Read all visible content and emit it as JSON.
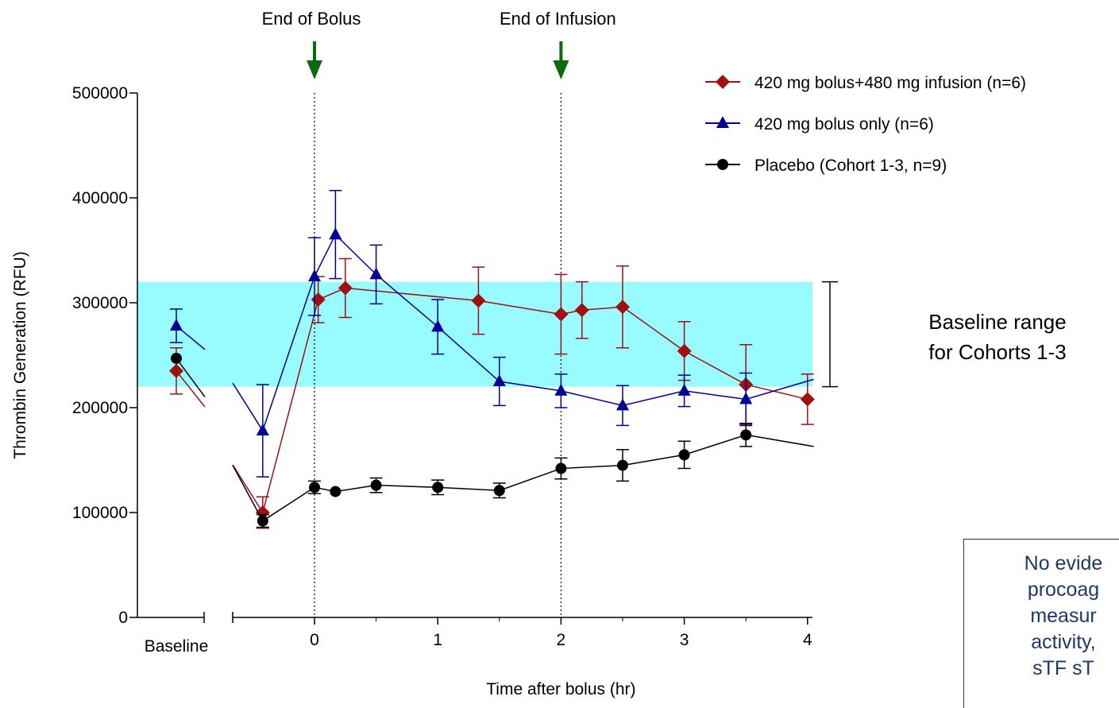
{
  "chart_data": {
    "type": "line",
    "ylabel": "Thrombin Generation (RFU)",
    "xlabel": "Time after bolus (hr)",
    "ylim": [
      0,
      500000
    ],
    "xlim": [
      -0.6,
      4.05
    ],
    "yticks": [
      0,
      100000,
      200000,
      300000,
      400000,
      500000
    ],
    "ytick_labels": [
      "0",
      "100000",
      "200000",
      "300000",
      "400000",
      "500000"
    ],
    "xticks": [
      0,
      1,
      2,
      3,
      4
    ],
    "xtick_labels": [
      "0",
      "1",
      "2",
      "3",
      "4"
    ],
    "baseline_label": "Baseline",
    "annotations": [
      {
        "label": "End of Bolus",
        "x": 0
      },
      {
        "label": "End of Infusion",
        "x": 2
      }
    ],
    "baseline_range": {
      "min": 220000,
      "max": 320000,
      "color": "#98fbff",
      "label": "Baseline range\nfor Cohorts 1-3"
    },
    "note_text": "No evide\nprocoag\nmeasur\nactivity,\nsTF sT",
    "series": [
      {
        "name": "420 mg bolus+480 mg infusion (n=6)",
        "color": "#a01010",
        "marker": "diamond",
        "baseline": {
          "y": 235000,
          "err": 22000
        },
        "x": [
          -0.42,
          0.03,
          0.25,
          1.33,
          2.0,
          2.17,
          2.5,
          3.0,
          3.5,
          4.0
        ],
        "y": [
          100000,
          303000,
          314000,
          302000,
          289000,
          293000,
          296000,
          254000,
          222000,
          208000
        ],
        "err": [
          15000,
          22000,
          28000,
          32000,
          38000,
          27000,
          39000,
          28000,
          38000,
          24000
        ]
      },
      {
        "name": "420 mg bolus only (n=6)",
        "color": "#000099",
        "marker": "triangle",
        "baseline": {
          "y": 278000,
          "err": 16000
        },
        "x": [
          -0.42,
          0.0,
          0.17,
          0.5,
          1.0,
          1.5,
          2.0,
          2.5,
          3.0,
          3.5
        ],
        "y": [
          178000,
          325000,
          365000,
          327000,
          277000,
          225000,
          216000,
          202000,
          216000,
          208000
        ],
        "err": [
          44000,
          37000,
          42000,
          28000,
          26000,
          23000,
          16000,
          19000,
          15000,
          25000
        ]
      },
      {
        "name": "Placebo (Cohort 1-3, n=9)",
        "color": "#000000",
        "marker": "circle",
        "baseline": {
          "y": 247000,
          "err": 0
        },
        "x": [
          -0.42,
          0.0,
          0.17,
          0.5,
          1.0,
          1.5,
          2.0,
          2.5,
          3.0,
          3.5
        ],
        "y": [
          92000,
          124000,
          120000,
          126000,
          124000,
          121000,
          142000,
          145000,
          155000,
          174000
        ],
        "err": [
          6000,
          6000,
          0,
          7000,
          7000,
          7000,
          10000,
          15000,
          13000,
          11000
        ]
      }
    ]
  }
}
